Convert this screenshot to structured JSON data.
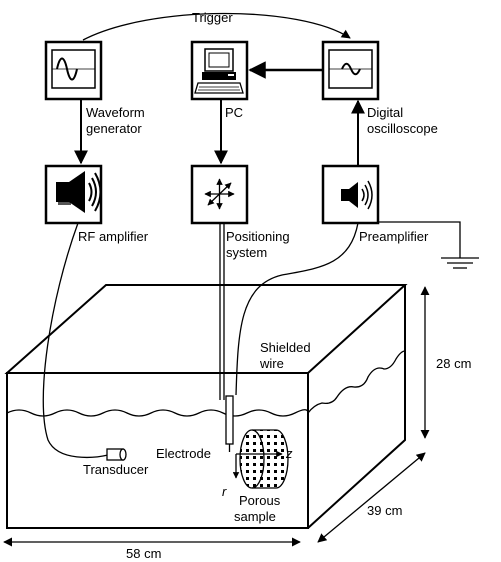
{
  "labels": {
    "trigger": "Trigger",
    "waveform_generator": [
      "Waveform",
      "generator"
    ],
    "pc": "PC",
    "digital_oscilloscope": [
      "Digital",
      "oscilloscope"
    ],
    "rf_amplifier": "RF amplifier",
    "positioning_system": [
      "Positioning",
      "system"
    ],
    "preamplifier": "Preamplifier",
    "shielded_wire": [
      "Shielded",
      "wire"
    ],
    "electrode": "Electrode",
    "transducer": "Transducer",
    "porous_sample": [
      "Porous",
      "sample"
    ],
    "axis_z": "z",
    "axis_r": "r",
    "height_dim": "28 cm",
    "depth_dim": "39 cm",
    "width_dim": "58 cm"
  },
  "icons": {
    "waveform_generator": "sine-wave-display-icon",
    "pc": "desktop-computer-icon",
    "digital_oscilloscope": "oscilloscope-display-icon",
    "rf_amplifier": "large-speaker-icon",
    "positioning_system": "four-way-arrows-icon",
    "preamplifier": "small-speaker-icon"
  }
}
